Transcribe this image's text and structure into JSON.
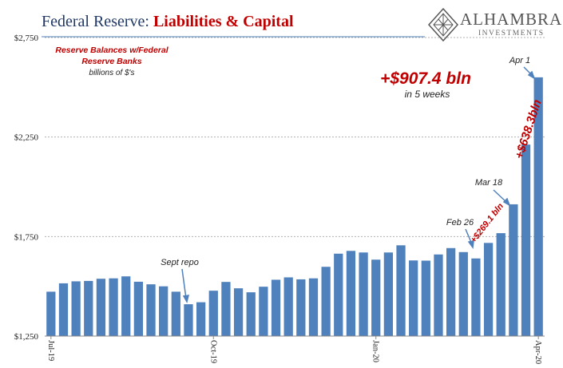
{
  "header": {
    "title_main": "Federal Reserve:",
    "title_accent": "Liabilities & Capital"
  },
  "logo": {
    "name": "ALHAMBRA",
    "sub": "INVESTMENTS"
  },
  "colors": {
    "bar": "#4f81bd",
    "accent": "#c00000",
    "title": "#1f3864",
    "arrow": "#4f81bd"
  },
  "chart_data": {
    "type": "bar",
    "series_label": "Reserve Balances w/Federal Reserve Banks",
    "units": "billions of $'s",
    "ylim": [
      1250,
      2750
    ],
    "yticks": [
      "$1,250",
      "$1,750",
      "$2,250",
      "$2,750"
    ],
    "ytick_values": [
      1250,
      1750,
      2250,
      2750
    ],
    "grid": true,
    "xtick_labels": [
      {
        "label": "Jul-19",
        "index": 0
      },
      {
        "label": "Oct-19",
        "index": 13
      },
      {
        "label": "Jan-20",
        "index": 26
      },
      {
        "label": "Apr-20",
        "index": 39
      }
    ],
    "values": [
      1473,
      1515,
      1525,
      1527,
      1538,
      1540,
      1550,
      1523,
      1510,
      1500,
      1473,
      1410,
      1420,
      1478,
      1522,
      1490,
      1470,
      1498,
      1533,
      1545,
      1535,
      1540,
      1598,
      1664,
      1678,
      1670,
      1634,
      1670,
      1706,
      1630,
      1629,
      1660,
      1692,
      1672,
      1640,
      1718,
      1767,
      1912,
      2212,
      2550
    ],
    "annotations": {
      "sept_repo": "Sept repo",
      "feb26": "Feb 26",
      "mar18": "Mar 18",
      "apr1": "Apr 1",
      "change_small": "+$269.1 bln",
      "change_mid": "+$638.3bln",
      "change_big": "+$907.4 bln",
      "change_big_sub": "in 5 weeks"
    }
  }
}
